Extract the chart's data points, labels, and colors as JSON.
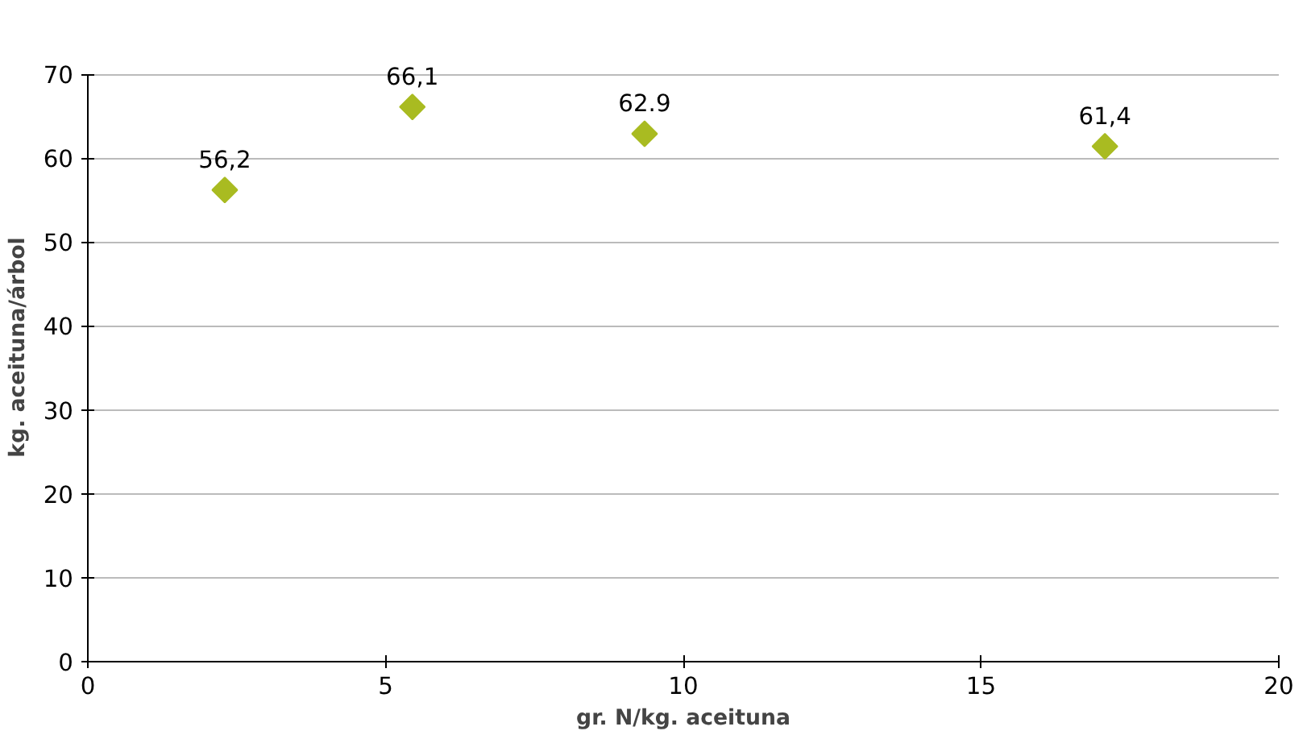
{
  "chart_data": {
    "type": "scatter",
    "xlabel": "gr. N/kg. aceituna",
    "ylabel": "kg. aceituna/árbol",
    "x": [
      2.3,
      5.45,
      9.35,
      17.08
    ],
    "series": [
      {
        "color": "#a9bb21",
        "values": [
          56.2,
          66.1,
          62.9,
          61.4
        ],
        "value_labels": [
          "56,2",
          "66,1",
          "62.9",
          "61,4"
        ]
      }
    ],
    "xlim": [
      0,
      20
    ],
    "xticks": [
      0,
      5,
      10,
      15,
      20
    ],
    "ylim": [
      0,
      70
    ],
    "yticks": [
      0,
      10,
      20,
      30,
      40,
      50,
      60,
      70
    ],
    "grid": "y",
    "marker": "diamond"
  }
}
